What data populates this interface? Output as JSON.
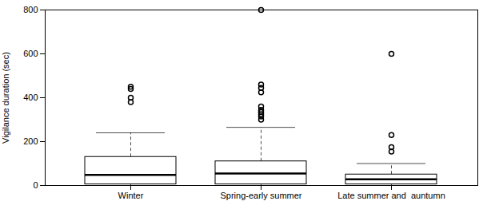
{
  "chart_data": {
    "type": "box",
    "ylabel": "Vigilance duration (sec)",
    "categories": [
      "Winter",
      "Spring-early summer",
      "Late summer and  auntumn"
    ],
    "ylim": [
      0,
      800
    ],
    "yticks": [
      0,
      200,
      400,
      600,
      800
    ],
    "boxes": [
      {
        "q1": 5,
        "median": 48,
        "q3": 130,
        "whisker_low": 0,
        "whisker_high": 240,
        "outliers": [
          380,
          400,
          440,
          450
        ]
      },
      {
        "q1": 5,
        "median": 55,
        "q3": 110,
        "whisker_low": 0,
        "whisker_high": 265,
        "outliers": [
          300,
          315,
          325,
          335,
          345,
          360,
          425,
          445,
          460,
          800
        ]
      },
      {
        "q1": 5,
        "median": 28,
        "q3": 50,
        "whisker_low": 0,
        "whisker_high": 100,
        "outliers": [
          155,
          175,
          230,
          600
        ]
      }
    ]
  }
}
